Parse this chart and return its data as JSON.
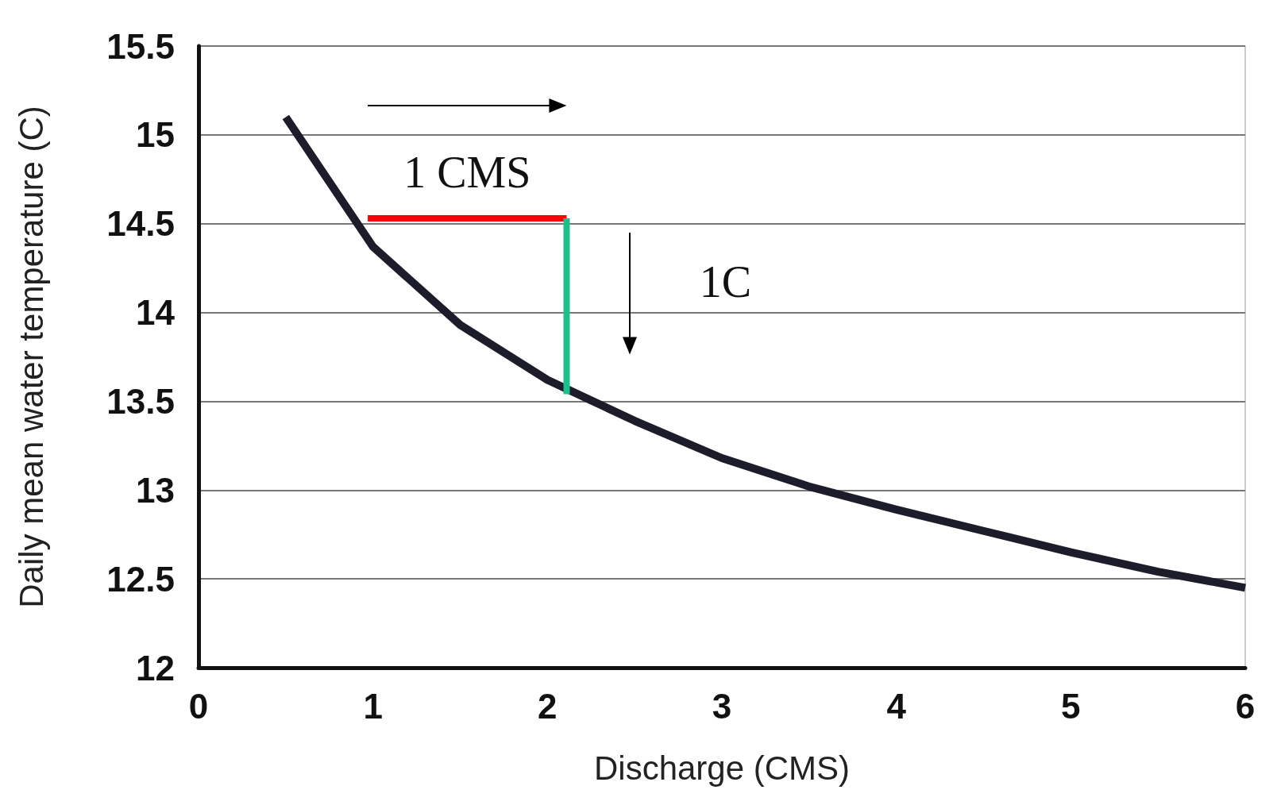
{
  "chart_data": {
    "type": "line",
    "xlabel": "Discharge (CMS)",
    "ylabel": "Daily mean water temperature (C)",
    "xlim": [
      0,
      6
    ],
    "xticks": [
      0,
      1,
      2,
      3,
      4,
      5,
      6
    ],
    "ylim": [
      12,
      15.5
    ],
    "yticks": [
      12,
      12.5,
      13,
      13.5,
      14,
      14.5,
      15,
      15.5
    ],
    "grid": "y",
    "marker": "none",
    "series": [
      {
        "color": "#1c1c2b",
        "x": [
          0.5,
          1,
          1.5,
          2,
          2.5,
          3,
          3.5,
          4,
          4.5,
          5,
          5.5,
          6
        ],
        "values": [
          15.1,
          14.37,
          13.93,
          13.62,
          13.39,
          13.18,
          13.02,
          12.89,
          12.77,
          12.65,
          12.54,
          12.45
        ]
      },
      {
        "color": "#ff0000",
        "x": [
          0.97,
          2.11
        ],
        "values": [
          14.53,
          14.53
        ]
      },
      {
        "color": "#1dbf8a",
        "x": [
          2.11,
          2.11
        ],
        "values": [
          14.53,
          13.54
        ]
      }
    ],
    "annotations": [
      "1 CMS",
      "1C"
    ]
  }
}
